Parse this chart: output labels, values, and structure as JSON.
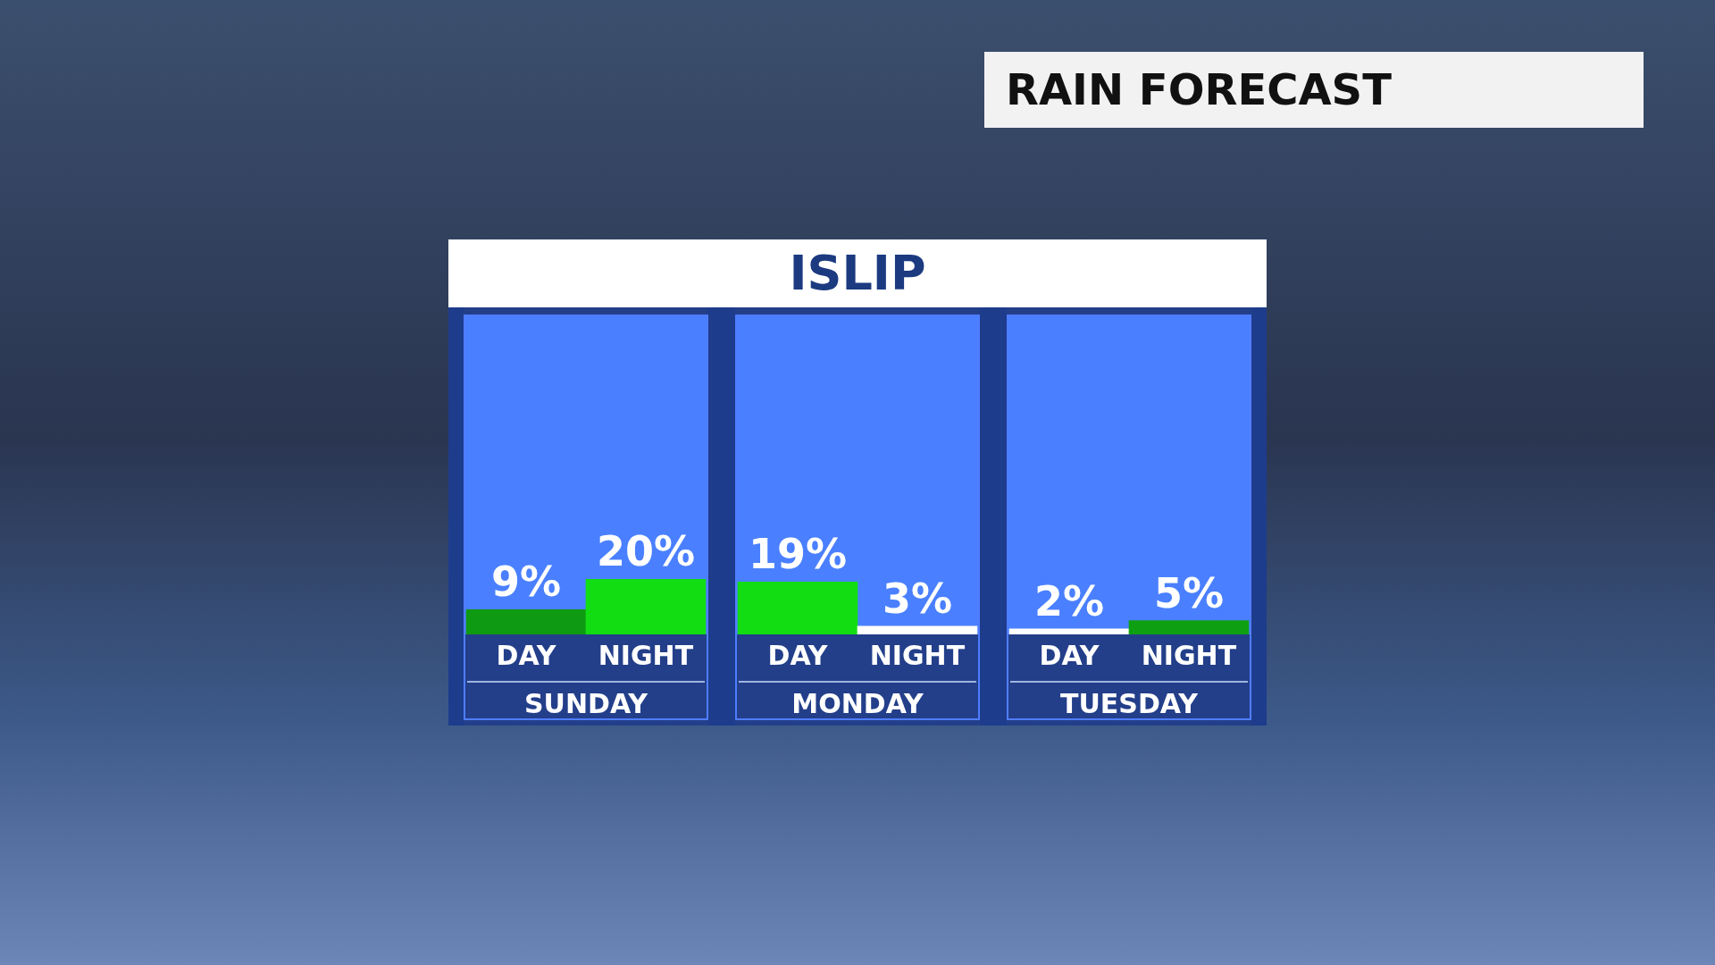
{
  "chart_data": {
    "type": "bar",
    "title": "RAIN FORECAST",
    "subtitle": "ISLIP",
    "categories": [
      "DAY",
      "NIGHT",
      "DAY",
      "NIGHT",
      "DAY",
      "NIGHT"
    ],
    "values": [
      9,
      20,
      19,
      3,
      2,
      5
    ],
    "colors": [
      "#0e9a12",
      "#12dd12",
      "#12dd12",
      "#ffffff",
      "#ffffff",
      "#0ea012"
    ],
    "value_labels": [
      "9%",
      "20%",
      "19%",
      "3%",
      "2%",
      "5%"
    ],
    "annotations": [
      "SUNDAY",
      "MONDAY",
      "TUESDAY"
    ]
  }
}
